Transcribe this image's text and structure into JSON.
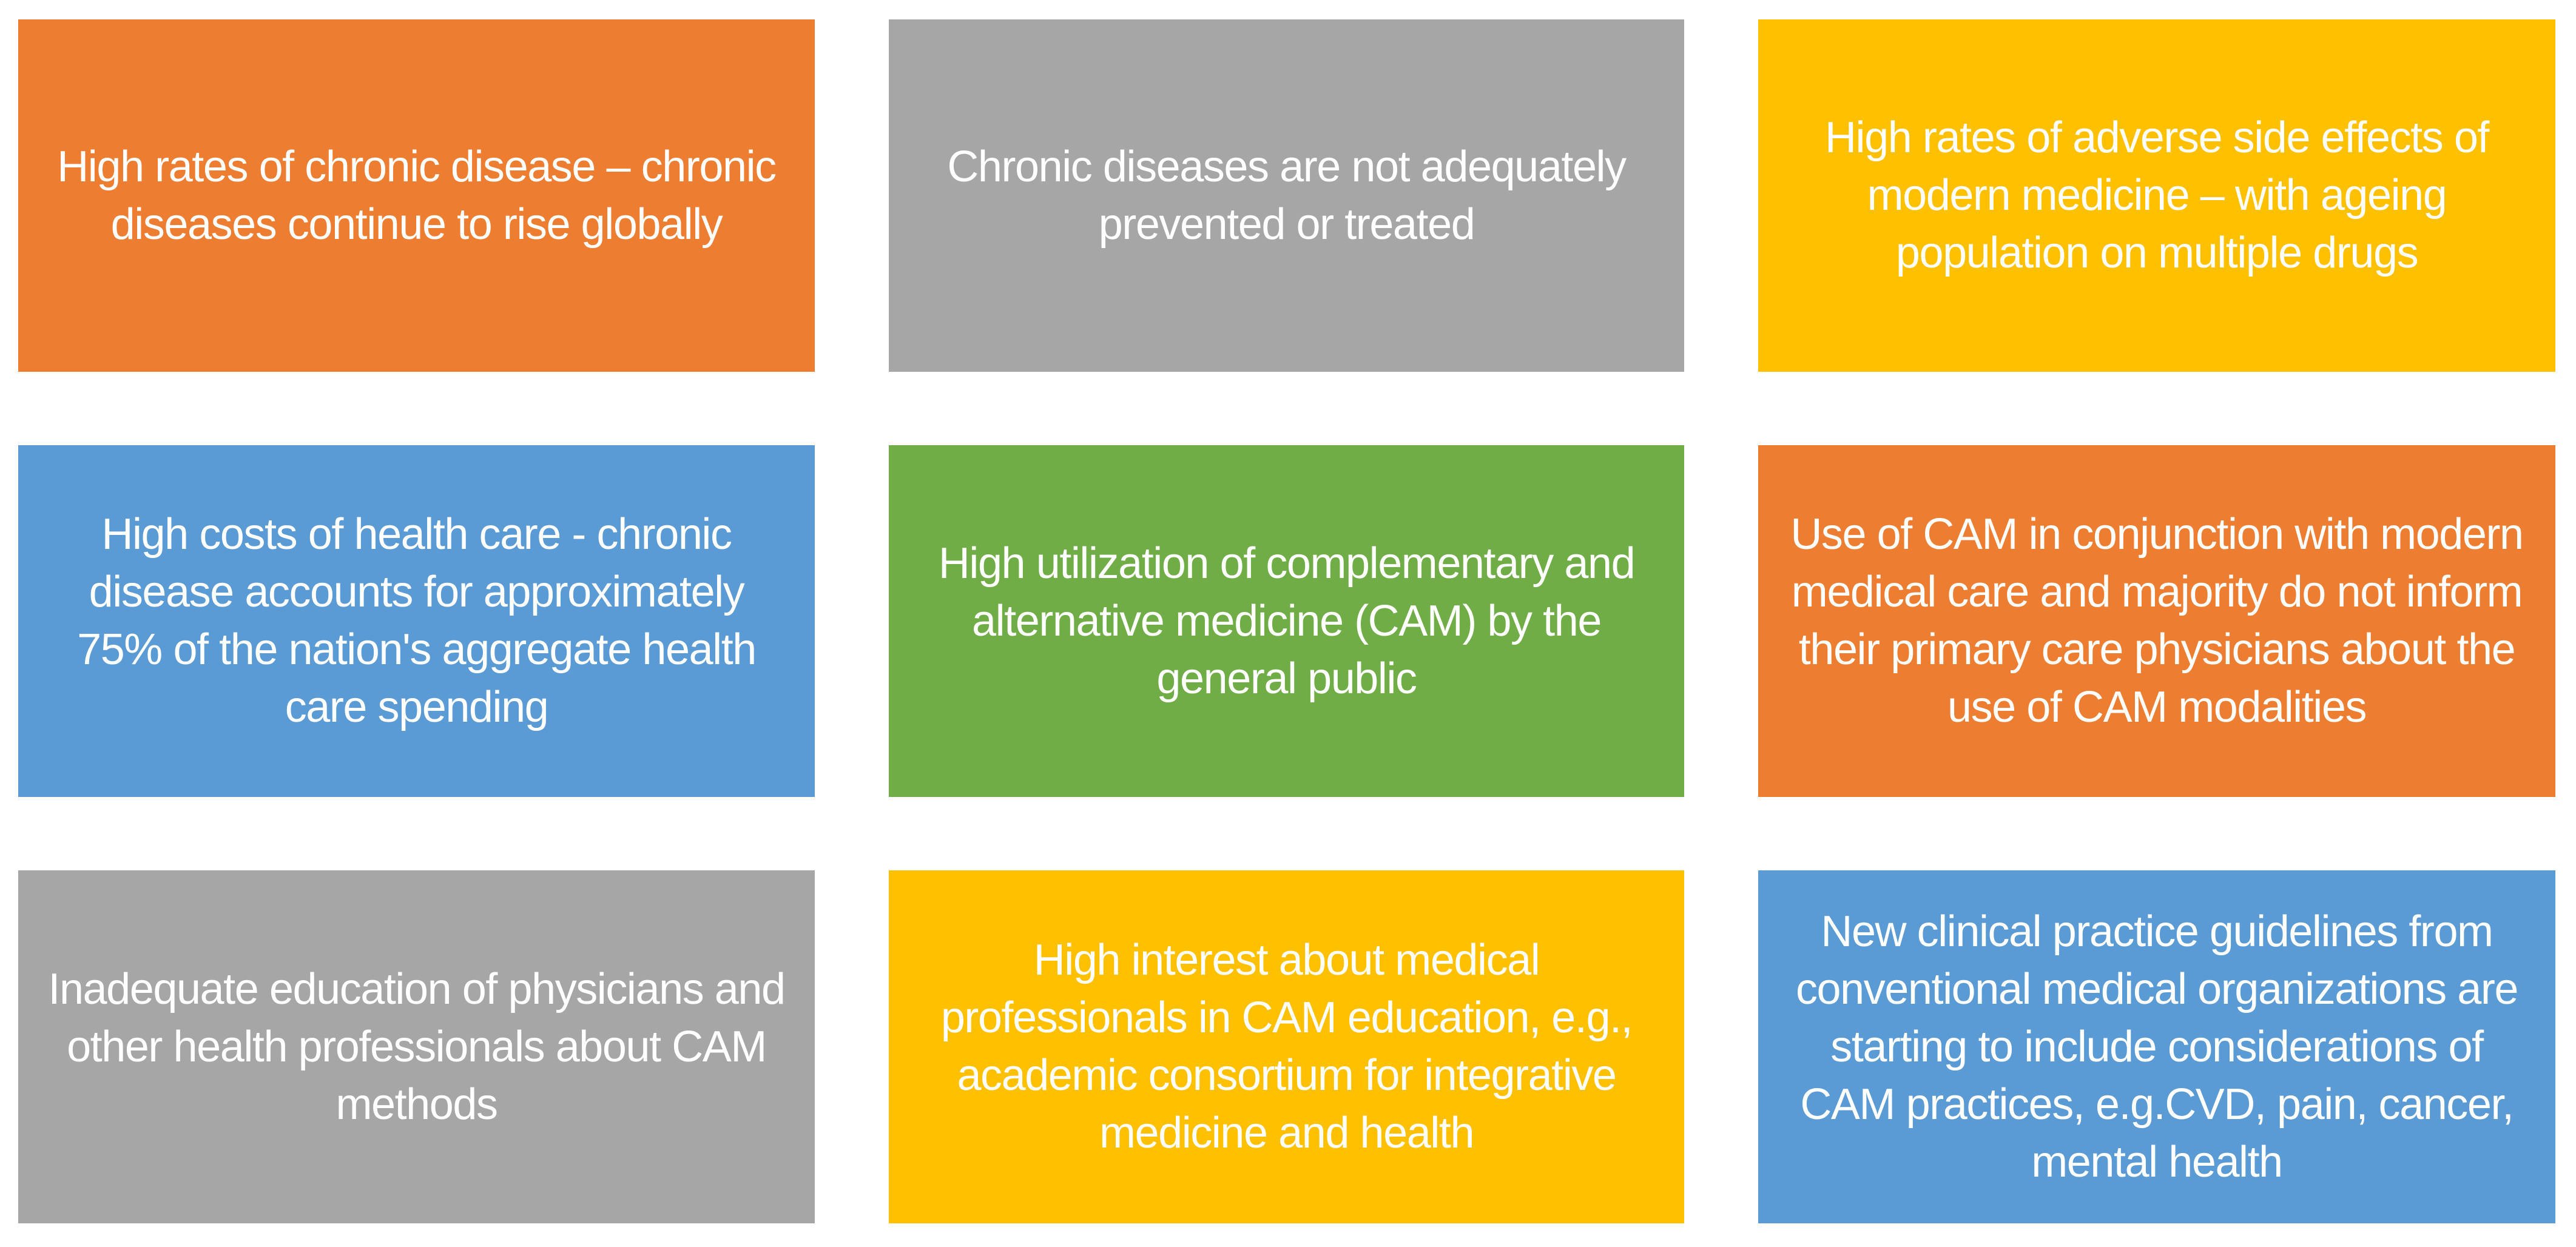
{
  "page": {
    "background": "#FFFFFF",
    "text_color": "#FFFFFF"
  },
  "palette": {
    "orange": "#ED7D31",
    "gray": "#A6A6A6",
    "yellow": "#FFC000",
    "blue": "#5B9BD5",
    "green": "#70AD47"
  },
  "cells": [
    {
      "color": "#ED7D31",
      "text": "High rates of chronic disease – chronic diseases continue to rise globally"
    },
    {
      "color": "#A6A6A6",
      "text": "Chronic diseases are not adequately prevented or treated"
    },
    {
      "color": "#FFC000",
      "text": "High rates of adverse side effects of modern medicine – with ageing population on multiple drugs"
    },
    {
      "color": "#5B9BD5",
      "text": "High costs of health care - chronic disease accounts for approximately 75% of the nation's aggregate health care spending"
    },
    {
      "color": "#70AD47",
      "text": "High utilization of complementary and alternative medicine (CAM) by the general public"
    },
    {
      "color": "#ED7D31",
      "text": "Use of CAM in conjunction with modern medical care and majority do not inform their primary care physicians about the use of CAM modalities"
    },
    {
      "color": "#A6A6A6",
      "text": "Inadequate education of physicians and other health professionals about CAM methods"
    },
    {
      "color": "#FFC000",
      "text": "High interest about medical professionals in CAM education, e.g., academic consortium for integrative medicine and health"
    },
    {
      "color": "#5B9BD5",
      "text": "New clinical practice guidelines from conventional medical organizations are starting to include considerations of CAM practices, e.g.CVD,  pain, cancer, mental health"
    }
  ]
}
